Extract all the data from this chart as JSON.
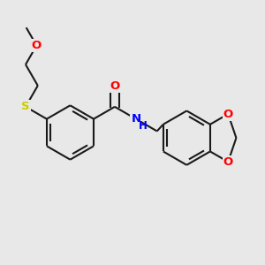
{
  "background_color": "#e8e8e8",
  "bond_color": "#1a1a1a",
  "figsize": [
    3.0,
    3.0
  ],
  "dpi": 100,
  "atom_colors": {
    "O": "#ff0000",
    "N": "#0000ff",
    "S": "#cccc00",
    "C": "#1a1a1a"
  },
  "lw": 1.5,
  "font_size": 9.5
}
